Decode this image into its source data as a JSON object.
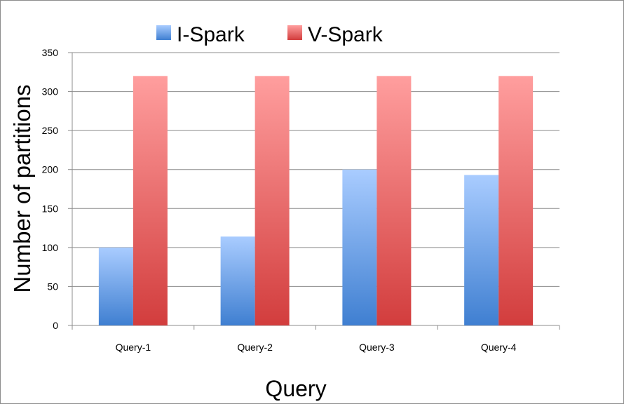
{
  "chart_data": {
    "type": "bar",
    "title": "",
    "xlabel": "Query",
    "ylabel": "Number of partitions",
    "categories": [
      "Query-1",
      "Query-2",
      "Query-3",
      "Query-4"
    ],
    "series": [
      {
        "name": "I-Spark",
        "values": [
          100,
          114,
          200,
          193
        ],
        "color_top": "#a9ccff",
        "color_bottom": "#3f7fd1"
      },
      {
        "name": "V-Spark",
        "values": [
          320,
          320,
          320,
          320
        ],
        "color_top": "#ff9e9e",
        "color_bottom": "#d23d3d"
      }
    ],
    "ylim": [
      0,
      350
    ],
    "yticks": [
      0,
      50,
      100,
      150,
      200,
      250,
      300,
      350
    ],
    "grid": true,
    "legend": "top"
  }
}
